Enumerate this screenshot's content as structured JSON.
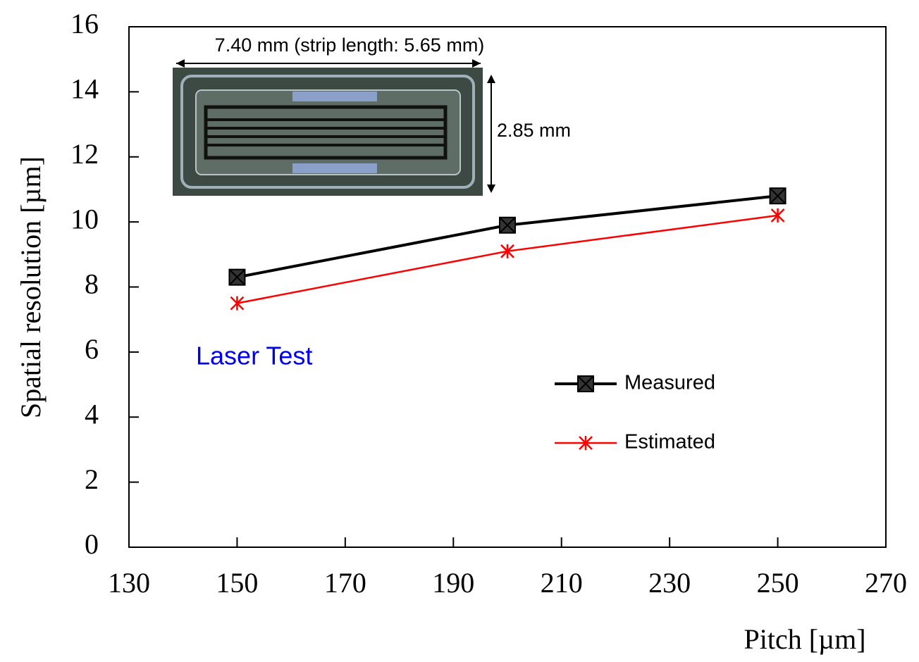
{
  "chart_data": {
    "type": "line",
    "x_label": "Pitch [µm]",
    "y_label": "Spatial resolution [µm]",
    "x": [
      150,
      200,
      250
    ],
    "series": [
      {
        "name": "Measured",
        "color": "#000000",
        "marker": "square-x",
        "values": [
          8.3,
          9.9,
          10.8
        ]
      },
      {
        "name": "Estimated",
        "color": "#ff0000",
        "marker": "star",
        "values": [
          7.5,
          9.1,
          10.2
        ]
      }
    ],
    "xlim": [
      130,
      270
    ],
    "xticks": [
      130,
      150,
      170,
      190,
      210,
      230,
      250,
      270
    ],
    "ylim": [
      0,
      16
    ],
    "yticks": [
      0,
      2,
      4,
      6,
      8,
      10,
      12,
      14,
      16
    ],
    "annotations": [
      "7.40 mm (strip length: 5.65 mm)",
      "2.85 mm",
      "Laser Test"
    ]
  }
}
